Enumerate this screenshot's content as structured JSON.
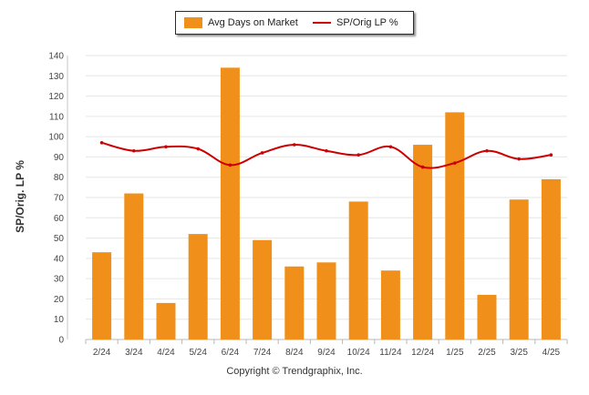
{
  "chart_data": {
    "type": "bar",
    "categories": [
      "2/24",
      "3/24",
      "4/24",
      "5/24",
      "6/24",
      "7/24",
      "8/24",
      "9/24",
      "10/24",
      "11/24",
      "12/24",
      "1/25",
      "2/25",
      "3/25",
      "4/25"
    ],
    "series": [
      {
        "name": "Avg Days on Market",
        "type": "bar",
        "color": "#F0901A",
        "values": [
          43,
          72,
          18,
          52,
          134,
          49,
          36,
          38,
          68,
          34,
          96,
          112,
          22,
          69,
          79
        ]
      },
      {
        "name": "SP/Orig LP %",
        "type": "line",
        "color": "#CC0000",
        "values": [
          97,
          93,
          95,
          94,
          86,
          92,
          96,
          93,
          91,
          95,
          85,
          87,
          93,
          89,
          91
        ]
      }
    ],
    "ylabel": "SP/Orig. LP %",
    "ylim": [
      0,
      140
    ],
    "yticks": [
      0,
      10,
      20,
      30,
      40,
      50,
      60,
      70,
      80,
      90,
      100,
      110,
      120,
      130,
      140
    ],
    "grid": true,
    "legend_position": "top-center"
  },
  "footer": {
    "copyright": "Copyright © Trendgraphix, Inc."
  }
}
